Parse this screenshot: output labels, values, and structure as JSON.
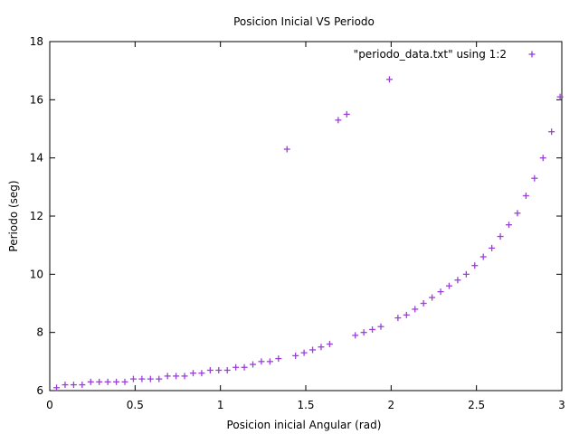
{
  "chart_data": {
    "type": "scatter",
    "title": "Posicion Inicial VS Periodo",
    "xlabel": "Posicion inicial Angular (rad)",
    "ylabel": "Periodo (seg)",
    "xlim": [
      0,
      3
    ],
    "ylim": [
      6,
      18
    ],
    "xticks": [
      0,
      0.5,
      1,
      1.5,
      2,
      2.5,
      3
    ],
    "xtick_labels": [
      "0",
      "0.5",
      "1",
      "1.5",
      "2",
      "2.5",
      "3"
    ],
    "yticks": [
      6,
      8,
      10,
      12,
      14,
      16,
      18
    ],
    "ytick_labels": [
      "6",
      "8",
      "10",
      "12",
      "14",
      "16",
      "18"
    ],
    "grid": false,
    "legend_position": "top-right",
    "marker_color": "#9a3fd9",
    "series": [
      {
        "name": "\"periodo_data.txt\" using 1:2",
        "marker": "plus",
        "x": [
          0.04,
          0.09,
          0.14,
          0.19,
          0.24,
          0.29,
          0.34,
          0.39,
          0.44,
          0.49,
          0.54,
          0.59,
          0.64,
          0.69,
          0.74,
          0.79,
          0.84,
          0.89,
          0.94,
          0.99,
          1.04,
          1.09,
          1.14,
          1.19,
          1.24,
          1.29,
          1.34,
          1.39,
          1.44,
          1.49,
          1.54,
          1.59,
          1.64,
          1.69,
          1.74,
          1.79,
          1.84,
          1.89,
          1.94,
          1.99,
          2.04,
          2.09,
          2.14,
          2.19,
          2.24,
          2.29,
          2.34,
          2.39,
          2.44,
          2.49,
          2.54,
          2.59,
          2.64,
          2.69,
          2.74,
          2.79,
          2.84,
          2.89,
          2.94,
          2.99
        ],
        "y": [
          6.1,
          6.2,
          6.2,
          6.2,
          6.3,
          6.3,
          6.3,
          6.3,
          6.3,
          6.4,
          6.4,
          6.4,
          6.4,
          6.5,
          6.5,
          6.5,
          6.6,
          6.6,
          6.7,
          6.7,
          6.7,
          6.8,
          6.8,
          6.9,
          7.0,
          7.0,
          7.1,
          14.3,
          7.2,
          7.3,
          7.4,
          7.5,
          7.6,
          15.3,
          15.5,
          7.9,
          8.0,
          8.1,
          8.2,
          16.7,
          8.5,
          8.6,
          8.8,
          9.0,
          9.2,
          9.4,
          9.6,
          9.8,
          10.0,
          10.3,
          10.6,
          10.9,
          11.3,
          11.7,
          12.1,
          12.7,
          13.3,
          14.0,
          14.9,
          16.1
        ]
      }
    ]
  }
}
